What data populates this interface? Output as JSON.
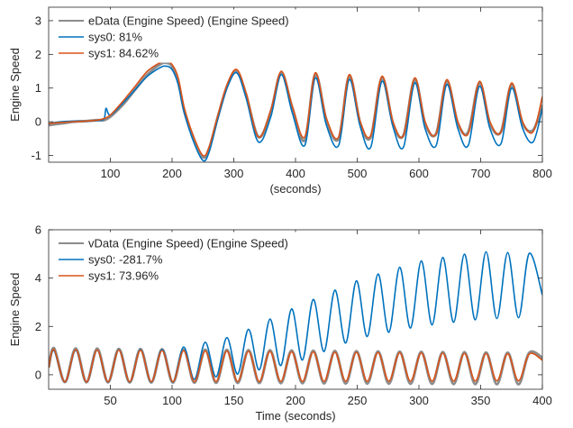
{
  "colors": {
    "measured": "#8c8c8c",
    "sys0": "#0072bd",
    "sys1": "#d95319",
    "axis": "#262626",
    "grid": "#e6e6e6"
  },
  "chart_data": [
    {
      "type": "line",
      "title": "",
      "xlabel": "(seconds)",
      "ylabel": "Engine Speed",
      "xlim": [
        0,
        800
      ],
      "ylim": [
        -1.2,
        3.4
      ],
      "xticks": [
        100,
        200,
        300,
        400,
        500,
        600,
        700,
        800
      ],
      "yticks": [
        -1,
        0,
        1,
        2,
        3
      ],
      "legend_placement": "top-left",
      "series": [
        {
          "name": "eData (Engine Speed) (Engine Speed)",
          "color_key": "measured",
          "x": [
            0,
            20,
            40,
            60,
            80,
            90,
            100,
            120,
            140,
            160,
            180,
            190,
            200,
            210,
            220,
            235,
            250,
            260,
            275,
            290,
            305,
            320,
            340,
            360,
            377,
            395,
            415,
            432,
            450,
            470,
            487,
            505,
            522,
            540,
            558,
            575,
            593,
            610,
            628,
            645,
            663,
            680,
            698,
            715,
            733,
            750,
            768,
            785,
            800
          ],
          "y": [
            -0.1,
            -0.05,
            0.0,
            0.02,
            0.05,
            0.05,
            0.15,
            0.5,
            0.95,
            1.4,
            1.7,
            1.75,
            1.65,
            1.2,
            0.3,
            -0.5,
            -1.05,
            -0.8,
            0.2,
            1.1,
            1.5,
            0.8,
            -0.45,
            0.3,
            1.45,
            0.4,
            -0.55,
            1.4,
            0.05,
            -0.5,
            1.35,
            -0.05,
            -0.45,
            1.3,
            -0.05,
            -0.4,
            1.25,
            -0.05,
            -0.35,
            1.2,
            -0.05,
            -0.3,
            1.15,
            -0.05,
            -0.3,
            1.1,
            -0.05,
            -0.25,
            0.5
          ]
        },
        {
          "name": "sys0:  81%",
          "color_key": "sys0",
          "x": [
            0,
            20,
            40,
            60,
            80,
            90,
            93,
            100,
            120,
            140,
            160,
            180,
            190,
            200,
            210,
            220,
            235,
            250,
            260,
            275,
            290,
            305,
            320,
            340,
            360,
            377,
            395,
            415,
            432,
            450,
            470,
            487,
            505,
            522,
            540,
            558,
            575,
            593,
            610,
            628,
            645,
            663,
            680,
            698,
            715,
            733,
            750,
            768,
            785,
            800
          ],
          "y": [
            -0.05,
            0.0,
            0.02,
            0.02,
            0.03,
            0.1,
            0.4,
            0.2,
            0.55,
            0.95,
            1.35,
            1.6,
            1.65,
            1.55,
            1.1,
            0.25,
            -0.6,
            -1.15,
            -0.9,
            0.15,
            1.05,
            1.45,
            0.7,
            -0.6,
            0.15,
            1.4,
            0.25,
            -0.7,
            1.3,
            -0.1,
            -0.7,
            1.25,
            -0.15,
            -0.75,
            1.2,
            -0.15,
            -0.75,
            1.15,
            -0.2,
            -0.7,
            1.1,
            -0.2,
            -0.7,
            1.05,
            -0.2,
            -0.65,
            1.0,
            -0.2,
            -0.6,
            0.4
          ]
        },
        {
          "name": "sys1: 84.62%",
          "color_key": "sys1",
          "x": [
            0,
            20,
            40,
            60,
            80,
            90,
            100,
            120,
            140,
            160,
            180,
            190,
            200,
            210,
            220,
            235,
            250,
            260,
            275,
            290,
            305,
            320,
            340,
            360,
            377,
            395,
            415,
            432,
            450,
            470,
            487,
            505,
            522,
            540,
            558,
            575,
            593,
            610,
            628,
            645,
            663,
            680,
            698,
            715,
            733,
            750,
            768,
            785,
            800
          ],
          "y": [
            -0.05,
            -0.02,
            0.0,
            0.02,
            0.05,
            0.1,
            0.2,
            0.6,
            1.05,
            1.5,
            1.75,
            1.8,
            1.7,
            1.3,
            0.4,
            -0.45,
            -1.0,
            -0.75,
            0.25,
            1.15,
            1.55,
            0.85,
            -0.45,
            0.35,
            1.5,
            0.45,
            -0.45,
            1.45,
            0.1,
            -0.45,
            1.4,
            0.0,
            -0.4,
            1.35,
            0.0,
            -0.4,
            1.3,
            0.0,
            -0.35,
            1.25,
            0.0,
            -0.35,
            1.2,
            0.0,
            -0.3,
            1.15,
            0.0,
            -0.3,
            0.75
          ]
        }
      ]
    },
    {
      "type": "line",
      "title": "",
      "xlabel": "Time (seconds)",
      "ylabel": "Engine Speed",
      "xlim": [
        0,
        400
      ],
      "ylim": [
        -0.6,
        6
      ],
      "xticks": [
        50,
        100,
        150,
        200,
        250,
        300,
        350,
        400
      ],
      "yticks": [
        0,
        2,
        4,
        6
      ],
      "legend_placement": "top-left",
      "series": [
        {
          "name": "vData (Engine Speed) (Engine Speed)",
          "color_key": "measured",
          "period": 17.5,
          "start": [
            0,
            0.3
          ],
          "peaks_maxima": [
            [
              0,
              1.1
            ],
            [
              400,
              0.9
            ]
          ],
          "peaks_minima": [
            [
              0,
              -0.3
            ],
            [
              400,
              -0.4
            ]
          ],
          "end": [
            400,
            0.7
          ]
        },
        {
          "name": "sys0: -281.7%",
          "color_key": "sys0",
          "period": 17.5,
          "start": [
            0,
            0.3
          ],
          "peaks_maxima": [
            [
              0,
              1.0
            ],
            [
              100,
              1.05
            ],
            [
              150,
              1.6
            ],
            [
              200,
              2.8
            ],
            [
              250,
              3.9
            ],
            [
              300,
              4.7
            ],
            [
              350,
              5.1
            ],
            [
              400,
              5.0
            ]
          ],
          "peaks_minima": [
            [
              0,
              -0.3
            ],
            [
              100,
              -0.3
            ],
            [
              150,
              0.0
            ],
            [
              200,
              0.5
            ],
            [
              250,
              1.5
            ],
            [
              300,
              2.0
            ],
            [
              350,
              2.3
            ],
            [
              400,
              2.4
            ]
          ],
          "end": [
            400,
            3.3
          ]
        },
        {
          "name": "sys1: 73.96%",
          "color_key": "sys1",
          "period": 17.5,
          "start": [
            0,
            0.3
          ],
          "peaks_maxima": [
            [
              0,
              1.05
            ],
            [
              400,
              0.85
            ]
          ],
          "peaks_minima": [
            [
              0,
              -0.3
            ],
            [
              400,
              -0.25
            ]
          ],
          "end": [
            400,
            0.6
          ]
        }
      ]
    }
  ]
}
